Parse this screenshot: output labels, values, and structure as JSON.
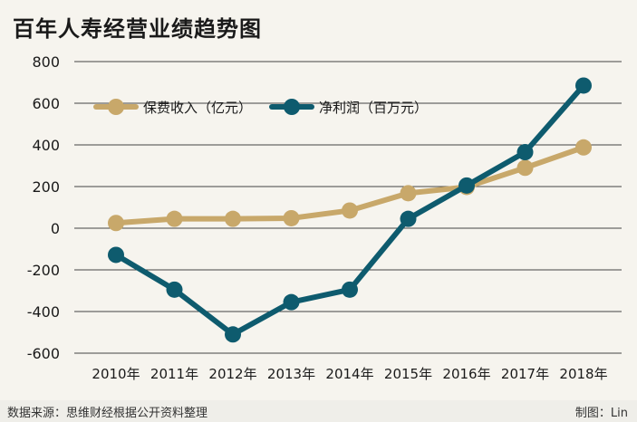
{
  "title": "百年人寿经营业绩趋势图",
  "footer": {
    "source": "数据来源：思维财经根据公开资料整理",
    "credit": "制图：Lin"
  },
  "colors": {
    "revenue": "#c8a86a",
    "profit": "#0e5b6e",
    "grid": "#444444",
    "background": "#f6f4ee"
  },
  "chart_data": {
    "type": "line",
    "title": "百年人寿经营业绩趋势图",
    "categories": [
      "2010年",
      "2011年",
      "2012年",
      "2013年",
      "2014年",
      "2015年",
      "2016年",
      "2017年",
      "2018年"
    ],
    "series": [
      {
        "name": "保费收入（亿元）",
        "values": [
          25,
          45,
          45,
          48,
          85,
          168,
          198,
          290,
          388
        ]
      },
      {
        "name": "净利润（百万元）",
        "values": [
          -128,
          -295,
          -510,
          -355,
          -295,
          45,
          205,
          365,
          685
        ]
      }
    ],
    "ylim": [
      -600,
      800
    ],
    "yticks": [
      "800",
      "600",
      "400",
      "200",
      "0",
      "-200",
      "-400",
      "-600"
    ],
    "ytick_values": [
      800,
      600,
      400,
      200,
      0,
      -200,
      -400,
      -600
    ],
    "grid": "horizontal",
    "legend_position": "top-left"
  }
}
